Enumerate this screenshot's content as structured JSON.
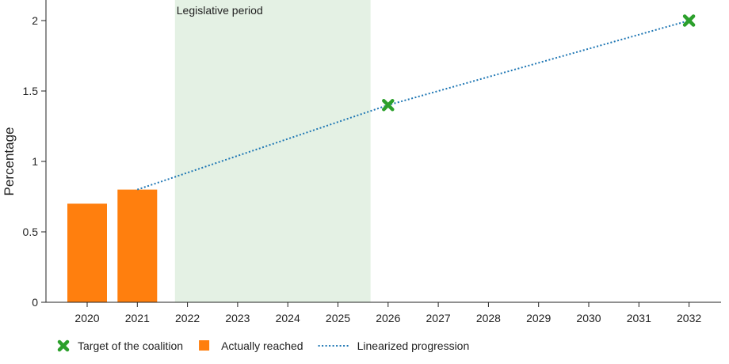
{
  "chart_data": {
    "type": "bar",
    "xlabel": "",
    "ylabel": "Percentage",
    "ylim": [
      0,
      2.1
    ],
    "yticks": [
      0,
      0.5,
      1,
      1.5,
      2
    ],
    "ytick_labels": [
      "0",
      "0.5",
      "1",
      "1.5",
      "2"
    ],
    "x_categories": [
      "2020",
      "2021",
      "2022",
      "2023",
      "2024",
      "2025",
      "2026",
      "2027",
      "2028",
      "2029",
      "2030",
      "2031",
      "2032"
    ],
    "shaded_region": {
      "label": "Legislative period",
      "from": 2021.75,
      "to": 2025.65,
      "color": "#e4f1e4"
    },
    "series": [
      {
        "name": "Actually reached",
        "kind": "bar",
        "color": "#ff7f0e",
        "points": [
          {
            "x": 2020,
            "y": 0.7
          },
          {
            "x": 2021,
            "y": 0.8
          }
        ]
      },
      {
        "name": "Target of the coalition",
        "kind": "marker",
        "color": "#2ca02c",
        "points": [
          {
            "x": 2026,
            "y": 1.4
          },
          {
            "x": 2032,
            "y": 2.0
          }
        ]
      },
      {
        "name": "Linearized progression",
        "kind": "line",
        "color": "#1f77b4",
        "points": [
          {
            "x": 2021,
            "y": 0.8
          },
          {
            "x": 2026,
            "y": 1.4
          },
          {
            "x": 2032,
            "y": 2.0
          }
        ]
      }
    ],
    "legend": {
      "placement": "bottom-left",
      "entries": [
        "Target of the coalition",
        "Actually reached",
        "Linearized progression"
      ]
    },
    "grid": false
  }
}
